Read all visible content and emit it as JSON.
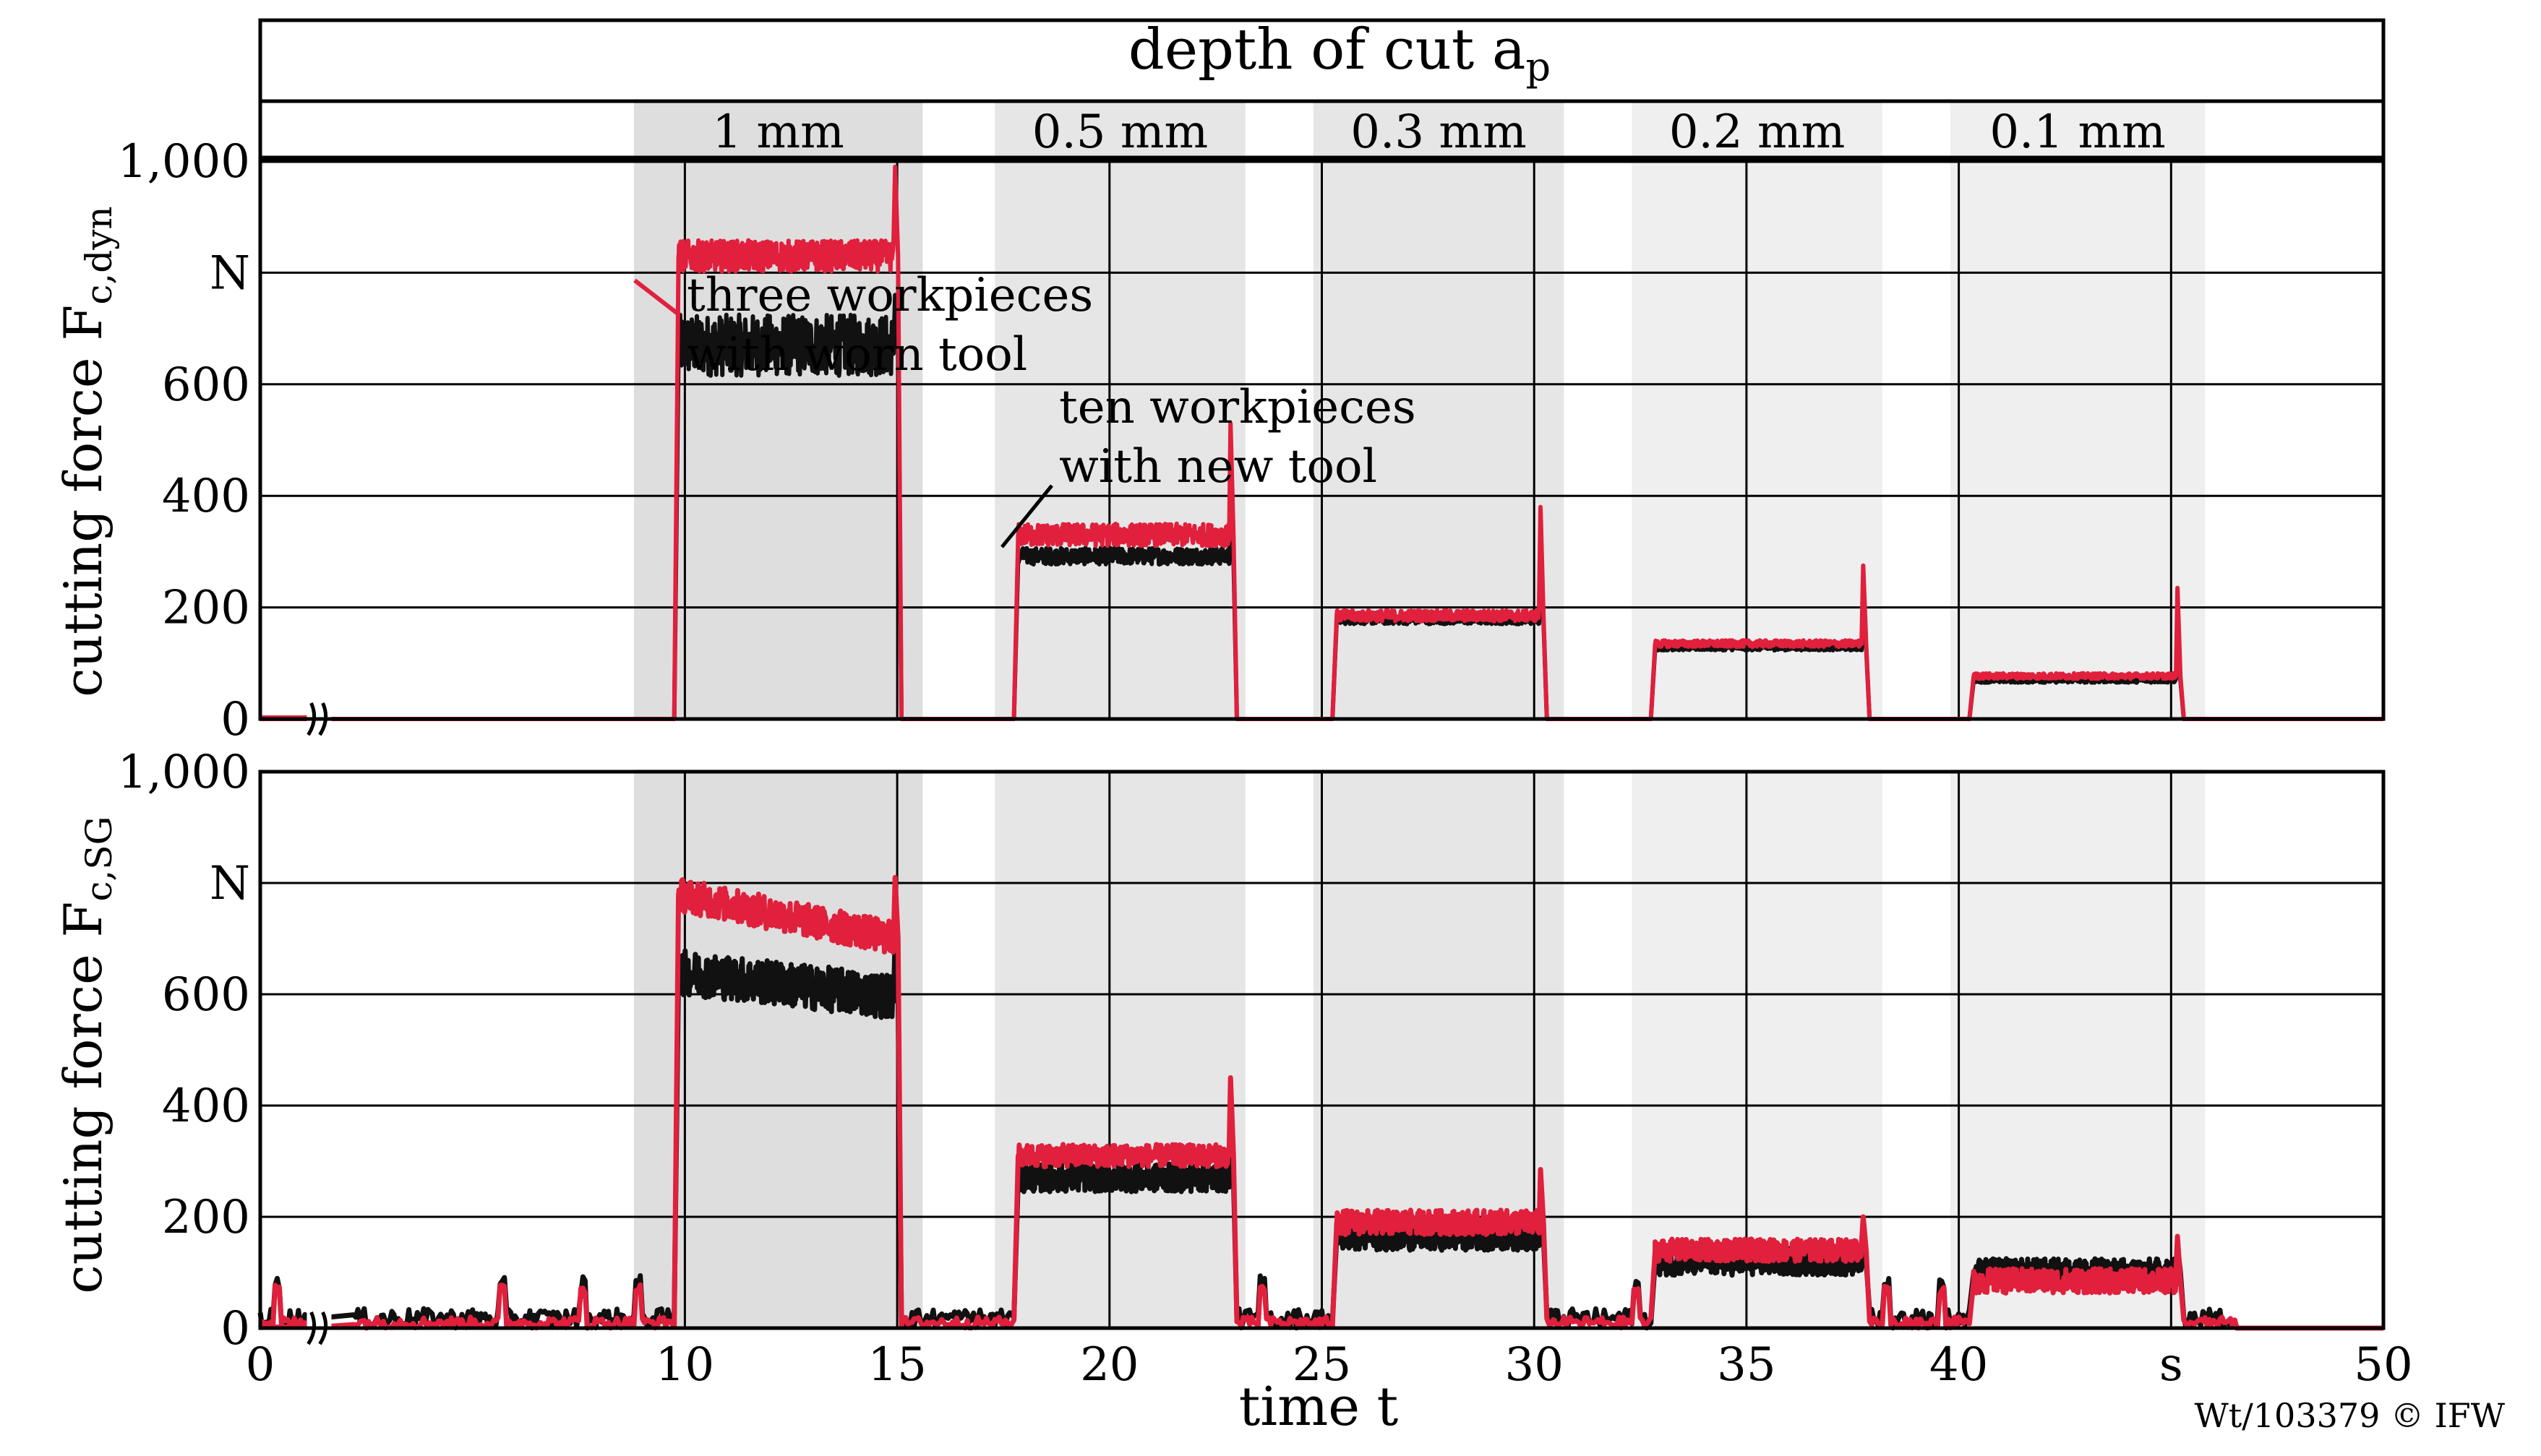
{
  "header": {
    "title_text": "depth of cut a",
    "title_sub": "p",
    "depth_labels": [
      "1 mm",
      "0.5 mm",
      "0.3 mm",
      "0.2 mm",
      "0.1 mm"
    ]
  },
  "footer": {
    "copyright": "Wt/103379 © IFW"
  },
  "annotations": {
    "worn_line1": "three workpieces",
    "worn_line2": "with worn tool",
    "new_line1": "ten workpieces",
    "new_line2": "with new tool"
  },
  "colors": {
    "worn": "#e0203c",
    "new": "#111111",
    "shade_dark": "#dedede",
    "shade_mid": "#e6e6e6",
    "shade_light": "#efefef"
  },
  "chart_data": [
    {
      "type": "line",
      "id": "top",
      "ylabel_main": "cutting force F",
      "ylabel_sub": "c,dyn",
      "yunit": "N",
      "xlim": [
        0,
        50
      ],
      "ylim": [
        0,
        1000
      ],
      "ytick_labels": [
        "0",
        "200",
        "400",
        "600",
        "N",
        "1,000"
      ],
      "ytick_values": [
        0,
        200,
        400,
        600,
        800,
        1000
      ],
      "xticks": [
        10,
        15,
        20,
        25,
        30,
        35,
        40,
        45
      ],
      "axis_break": 1.2,
      "depth_bands": [
        {
          "label": "1 mm",
          "x0": 8.8,
          "x1": 15.6
        },
        {
          "label": "0.5 mm",
          "x0": 17.3,
          "x1": 23.2
        },
        {
          "label": "0.3 mm",
          "x0": 24.8,
          "x1": 30.7
        },
        {
          "label": "0.2 mm",
          "x0": 32.3,
          "x1": 38.2
        },
        {
          "label": "0.1 mm",
          "x0": 39.8,
          "x1": 45.8
        }
      ],
      "series": [
        {
          "name": "three workpieces with worn tool",
          "segments": [
            {
              "x0": 9.8,
              "x1": 15.0,
              "level": 830,
              "noise": 28,
              "spike": 990
            },
            {
              "x0": 17.8,
              "x1": 22.9,
              "level": 330,
              "noise": 20,
              "spike": 530
            },
            {
              "x0": 25.3,
              "x1": 30.2,
              "level": 185,
              "noise": 10,
              "spike": 380
            },
            {
              "x0": 32.8,
              "x1": 37.8,
              "level": 135,
              "noise": 6,
              "spike": 275
            },
            {
              "x0": 40.3,
              "x1": 45.2,
              "level": 77,
              "noise": 5,
              "spike": 235
            }
          ]
        },
        {
          "name": "ten workpieces with new tool",
          "segments": [
            {
              "x0": 9.8,
              "x1": 15.0,
              "level": 670,
              "noise": 55,
              "spike": 760
            },
            {
              "x0": 17.8,
              "x1": 22.9,
              "level": 292,
              "noise": 15,
              "spike": 380
            },
            {
              "x0": 25.3,
              "x1": 30.2,
              "level": 178,
              "noise": 8,
              "spike": 320
            },
            {
              "x0": 32.8,
              "x1": 37.8,
              "level": 128,
              "noise": 5,
              "spike": 160
            },
            {
              "x0": 40.3,
              "x1": 45.2,
              "level": 70,
              "noise": 5,
              "spike": 140
            }
          ]
        }
      ]
    },
    {
      "type": "line",
      "id": "bottom",
      "ylabel_main": "cutting force F",
      "ylabel_sub": "c,SG",
      "yunit": "N",
      "xlabel": "time t",
      "xunit": "s",
      "xlim": [
        0,
        50
      ],
      "ylim": [
        0,
        1000
      ],
      "ytick_labels": [
        "0",
        "200",
        "400",
        "600",
        "N",
        "1,000"
      ],
      "ytick_values": [
        0,
        200,
        400,
        600,
        800,
        1000
      ],
      "xtick_labels": [
        "0",
        "10",
        "15",
        "20",
        "25",
        "30",
        "35",
        "40",
        "s",
        "50"
      ],
      "xtick_values": [
        0,
        10,
        15,
        20,
        25,
        30,
        35,
        40,
        45,
        50
      ],
      "axis_break": 1.2,
      "series": [
        {
          "name": "three workpieces with worn tool",
          "segments": [
            {
              "x0": 9.8,
              "x1": 15.0,
              "level_start": 780,
              "level_end": 700,
              "noise": 30,
              "spike": 810
            },
            {
              "x0": 17.8,
              "x1": 22.9,
              "level": 310,
              "noise": 20,
              "spike": 450
            },
            {
              "x0": 25.3,
              "x1": 30.2,
              "level": 190,
              "noise": 22,
              "spike": 285
            },
            {
              "x0": 32.8,
              "x1": 37.8,
              "level": 140,
              "noise": 20,
              "spike": 200
            },
            {
              "x0": 40.3,
              "x1": 45.2,
              "level": 85,
              "noise": 22,
              "spike": 165
            }
          ]
        },
        {
          "name": "ten workpieces with new tool",
          "segments": [
            {
              "x0": 9.8,
              "x1": 15.0,
              "level_start": 640,
              "level_end": 595,
              "noise": 40,
              "spike": 700
            },
            {
              "x0": 17.8,
              "x1": 22.9,
              "level": 270,
              "noise": 25,
              "spike": 320
            },
            {
              "x0": 25.3,
              "x1": 30.2,
              "level": 165,
              "noise": 25,
              "spike": 230
            },
            {
              "x0": 32.8,
              "x1": 37.8,
              "level": 120,
              "noise": 25,
              "spike": 190
            },
            {
              "x0": 40.3,
              "x1": 45.2,
              "level": 100,
              "noise": 25,
              "spike": 150
            }
          ]
        }
      ]
    }
  ]
}
